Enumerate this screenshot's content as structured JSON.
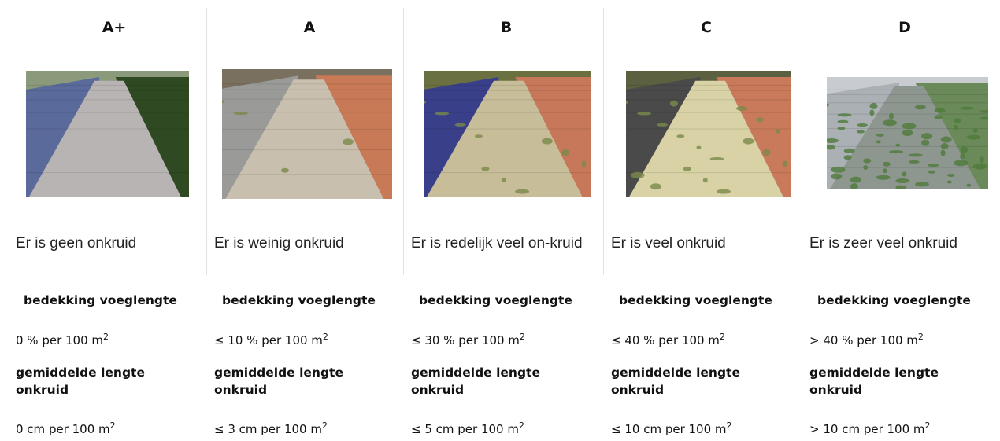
{
  "columns": [
    {
      "grade": "A+",
      "description": "Er is geen onkruid",
      "coverage_label": "bedekking voeglengte",
      "coverage": {
        "text": "0 % per 100 m",
        "sup": "2"
      },
      "length_label": "gemiddelde lengte onkruid",
      "length": {
        "text": "0 cm per 100 m",
        "sup": "2"
      }
    },
    {
      "grade": "A",
      "description": "Er is weinig onkruid",
      "coverage_label": "bedekking voeglengte",
      "coverage": {
        "text": "≤ 10 % per 100 m",
        "sup": "2"
      },
      "length_label": "gemiddelde lengte onkruid",
      "length": {
        "text": "≤ 3 cm per 100 m",
        "sup": "2"
      }
    },
    {
      "grade": "B",
      "description": "Er is redelijk veel on-kruid",
      "coverage_label": "bedekking voeglengte",
      "coverage": {
        "text": "≤ 30 % per 100 m",
        "sup": "2"
      },
      "length_label": "gemiddelde lengte onkruid",
      "length": {
        "text": "≤ 5 cm per 100 m",
        "sup": "2"
      }
    },
    {
      "grade": "C",
      "description": "Er is veel onkruid",
      "coverage_label": "bedekking voeglengte",
      "coverage": {
        "text": "≤ 40 % per 100 m",
        "sup": "2"
      },
      "length_label": "gemiddelde lengte onkruid",
      "length": {
        "text": "≤ 10 cm per 100 m",
        "sup": "2"
      }
    },
    {
      "grade": "D",
      "description": "Er is zeer veel onkruid",
      "coverage_label": "bedekking voeglengte",
      "coverage": {
        "text": "> 40 % per 100 m",
        "sup": "2"
      },
      "length_label": "gemiddelde lengte onkruid",
      "length": {
        "text": "> 10 cm per 100 m",
        "sup": "2"
      }
    }
  ]
}
